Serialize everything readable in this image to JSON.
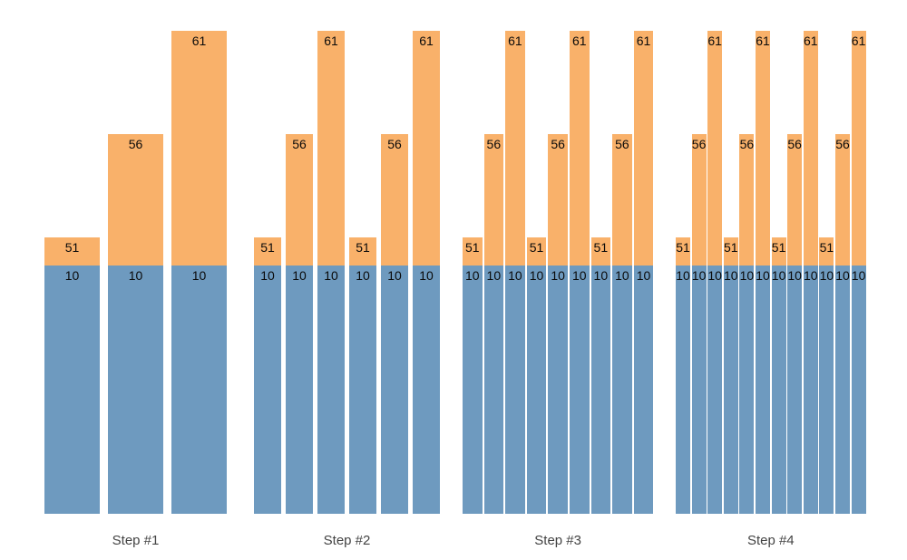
{
  "chart_data": {
    "type": "bar",
    "stacked": true,
    "title": "",
    "xlabel": "",
    "ylabel": "",
    "grid": false,
    "legend": null,
    "background_color": "#ffffff",
    "base_segment_value": 10,
    "base_segment_color": "#6E9ABF",
    "top_segment_color": "#F9B16A",
    "value_label_color": "#0a0a0a",
    "step_label_color": "#434343",
    "groups": [
      {
        "label": "Step #1",
        "values": [
          51,
          56,
          61
        ]
      },
      {
        "label": "Step #2",
        "values": [
          51,
          56,
          61,
          51,
          56,
          61
        ]
      },
      {
        "label": "Step #3",
        "values": [
          51,
          56,
          61,
          51,
          56,
          61,
          51,
          56,
          61
        ]
      },
      {
        "label": "Step #4",
        "values": [
          51,
          56,
          61,
          51,
          56,
          61,
          51,
          56,
          61,
          51,
          56,
          61
        ]
      }
    ],
    "bar_labels": {
      "top_label_shows": "total value (51, 56 or 61) inside top of orange segment",
      "base_label_shows": "10 inside top of blue segment"
    }
  }
}
